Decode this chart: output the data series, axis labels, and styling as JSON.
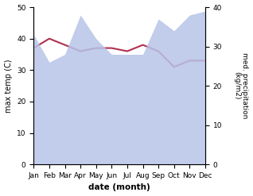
{
  "months": [
    "Jan",
    "Feb",
    "Mar",
    "Apr",
    "May",
    "Jun",
    "Jul",
    "Aug",
    "Sep",
    "Oct",
    "Nov",
    "Dec"
  ],
  "x": [
    0,
    1,
    2,
    3,
    4,
    5,
    6,
    7,
    8,
    9,
    10,
    11
  ],
  "temperature": [
    37,
    40,
    38,
    36,
    37,
    37,
    36,
    38,
    36,
    31,
    33,
    33
  ],
  "precipitation": [
    33,
    26,
    28,
    38,
    32,
    28,
    28,
    28,
    37,
    34,
    38,
    39
  ],
  "temp_color": "#b03050",
  "precip_fill_color": "#b8c4e8",
  "ylabel_left": "max temp (C)",
  "ylabel_right": "med. precipitation\n(kg/m2)",
  "xlabel": "date (month)",
  "ylim_left": [
    0,
    50
  ],
  "ylim_right": [
    0,
    40
  ],
  "yticks_left": [
    0,
    10,
    20,
    30,
    40,
    50
  ],
  "yticks_right": [
    0,
    10,
    20,
    30,
    40
  ],
  "bg_color": "#ffffff"
}
